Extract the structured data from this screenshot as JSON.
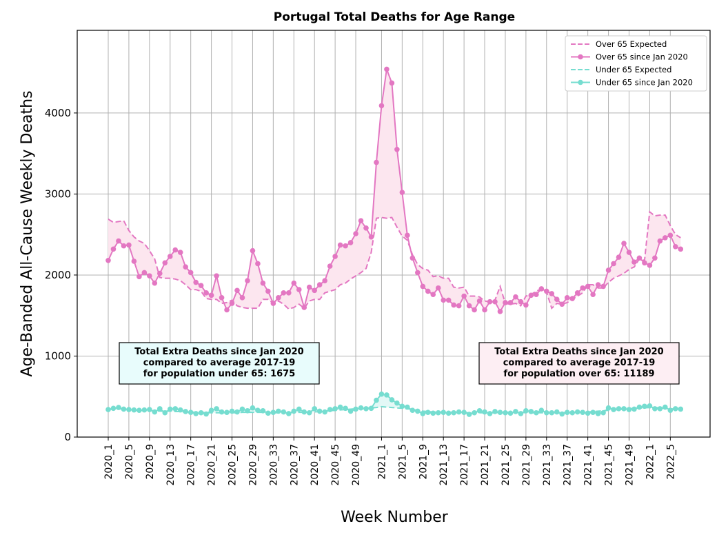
{
  "chart_data": {
    "type": "line",
    "title": "Portugal Total Deaths for Age Range",
    "xlabel": "Week Number",
    "ylabel": "Age-Banded All-Cause Weekly Deaths",
    "categories": [
      "2020_1",
      null,
      null,
      null,
      "2020_5",
      null,
      null,
      null,
      "2020_9",
      null,
      null,
      null,
      "2020_13",
      null,
      null,
      null,
      "2020_17",
      null,
      null,
      null,
      "2020_21",
      null,
      null,
      null,
      "2020_25",
      null,
      null,
      null,
      "2020_29",
      null,
      null,
      null,
      "2020_33",
      null,
      null,
      null,
      "2020_37",
      null,
      null,
      null,
      "2020_41",
      null,
      null,
      null,
      "2020_45",
      null,
      null,
      null,
      "2020_49",
      null,
      null,
      null,
      null,
      "2021_1",
      null,
      null,
      null,
      "2021_5",
      null,
      null,
      null,
      "2021_9",
      null,
      null,
      null,
      "2021_13",
      null,
      null,
      null,
      "2021_17",
      null,
      null,
      null,
      "2021_21",
      null,
      null,
      null,
      "2021_25",
      null,
      null,
      null,
      "2021_29",
      null,
      null,
      null,
      "2021_33",
      null,
      null,
      null,
      "2021_37",
      null,
      null,
      null,
      "2021_41",
      null,
      null,
      null,
      "2021_45",
      null,
      null,
      null,
      "2021_49",
      null,
      null,
      null,
      "2022_1",
      null,
      null,
      null,
      "2022_5",
      null,
      null
    ],
    "series": [
      {
        "name": "Over 65 Expected",
        "color": "#e377c2",
        "linestyle": "dashed",
        "marker": false,
        "values": [
          2690,
          2650,
          2660,
          2670,
          2550,
          2470,
          2420,
          2390,
          2300,
          2200,
          1970,
          1960,
          1960,
          1950,
          1930,
          1880,
          1820,
          1820,
          1800,
          1710,
          1700,
          1700,
          1650,
          1660,
          1690,
          1620,
          1600,
          1590,
          1590,
          1590,
          1700,
          1700,
          1650,
          1680,
          1640,
          1580,
          1600,
          1640,
          1590,
          1680,
          1700,
          1700,
          1780,
          1800,
          1820,
          1880,
          1900,
          1950,
          1990,
          2030,
          2080,
          2280,
          2700,
          2710,
          2700,
          2710,
          2590,
          2480,
          2430,
          2250,
          2130,
          2080,
          2060,
          1980,
          1990,
          1960,
          1960,
          1850,
          1840,
          1850,
          1740,
          1740,
          1730,
          1680,
          1670,
          1690,
          1860,
          1650,
          1640,
          1650,
          1620,
          1740,
          1760,
          1800,
          1830,
          1790,
          1590,
          1650,
          1640,
          1660,
          1700,
          1740,
          1780,
          1880,
          1880,
          1840,
          1840,
          1910,
          1960,
          1990,
          2020,
          2070,
          2100,
          2200,
          2180,
          2780,
          2730,
          2740,
          2740,
          2610,
          2500,
          2460
        ]
      },
      {
        "name": "Over 65 since Jan 2020",
        "color": "#e377c2",
        "linestyle": "solid",
        "marker": true,
        "values": [
          2180,
          2320,
          2420,
          2360,
          2370,
          2170,
          1980,
          2030,
          1990,
          1900,
          2020,
          2150,
          2230,
          2310,
          2280,
          2100,
          2030,
          1910,
          1870,
          1780,
          1750,
          1990,
          1720,
          1570,
          1650,
          1810,
          1720,
          1930,
          2300,
          2140,
          1900,
          1800,
          1650,
          1720,
          1780,
          1780,
          1900,
          1820,
          1600,
          1850,
          1810,
          1880,
          1930,
          2110,
          2230,
          2370,
          2360,
          2400,
          2510,
          2670,
          2580,
          2470,
          3390,
          4090,
          4540,
          4370,
          3550,
          3020,
          2490,
          2210,
          2030,
          1860,
          1800,
          1760,
          1840,
          1690,
          1690,
          1630,
          1620,
          1740,
          1620,
          1570,
          1680,
          1570,
          1670,
          1670,
          1550,
          1660,
          1660,
          1730,
          1670,
          1630,
          1750,
          1760,
          1830,
          1800,
          1770,
          1700,
          1640,
          1720,
          1710,
          1780,
          1840,
          1860,
          1760,
          1880,
          1860,
          2060,
          2140,
          2220,
          2390,
          2280,
          2160,
          2210,
          2150,
          2120,
          2210,
          2420,
          2460,
          2490,
          2350,
          2320
        ]
      },
      {
        "name": "Under 65 Expected",
        "color": "#76ddd0",
        "linestyle": "dashed",
        "marker": false,
        "values": [
          340,
          345,
          350,
          345,
          340,
          335,
          330,
          330,
          325,
          325,
          320,
          320,
          320,
          315,
          315,
          310,
          310,
          305,
          305,
          300,
          300,
          300,
          300,
          300,
          300,
          300,
          305,
          305,
          305,
          305,
          305,
          300,
          300,
          300,
          300,
          300,
          305,
          305,
          305,
          310,
          310,
          315,
          320,
          325,
          330,
          335,
          340,
          345,
          350,
          355,
          360,
          360,
          365,
          375,
          370,
          365,
          360,
          355,
          350,
          340,
          330,
          320,
          315,
          310,
          310,
          305,
          305,
          305,
          300,
          300,
          300,
          300,
          300,
          300,
          300,
          300,
          305,
          305,
          305,
          305,
          305,
          300,
          300,
          300,
          300,
          300,
          300,
          300,
          300,
          305,
          305,
          305,
          310,
          310,
          315,
          320,
          325,
          330,
          335,
          340,
          345,
          350,
          355,
          360,
          360,
          365,
          365,
          360,
          355,
          350,
          345,
          345
        ]
      },
      {
        "name": "Under 65 since Jan 2020",
        "color": "#76ddd0",
        "linestyle": "solid",
        "marker": true,
        "values": [
          340,
          355,
          365,
          345,
          340,
          335,
          330,
          335,
          340,
          310,
          350,
          300,
          345,
          350,
          335,
          315,
          305,
          290,
          300,
          285,
          330,
          350,
          310,
          305,
          320,
          310,
          345,
          325,
          360,
          330,
          325,
          295,
          305,
          320,
          310,
          290,
          320,
          345,
          310,
          300,
          350,
          320,
          310,
          340,
          350,
          370,
          355,
          320,
          345,
          360,
          350,
          355,
          455,
          530,
          520,
          460,
          420,
          380,
          370,
          330,
          320,
          290,
          305,
          295,
          300,
          305,
          295,
          300,
          310,
          305,
          280,
          300,
          325,
          310,
          290,
          315,
          305,
          300,
          295,
          315,
          290,
          325,
          315,
          300,
          330,
          300,
          300,
          310,
          285,
          305,
          300,
          310,
          305,
          295,
          305,
          290,
          300,
          360,
          340,
          350,
          350,
          340,
          345,
          370,
          380,
          385,
          350,
          350,
          370,
          330,
          350,
          345
        ]
      }
    ],
    "fill_between": [
      {
        "series": [
          1,
          0
        ],
        "color": "#fce6ef"
      },
      {
        "series": [
          3,
          2
        ],
        "color": "#e3f8f6"
      }
    ],
    "ylim": [
      0,
      5020
    ],
    "yticks": [
      0,
      1000,
      2000,
      3000,
      4000
    ],
    "grid": true,
    "legend": "upper right",
    "annotations": [
      {
        "lines": [
          "Total Extra Deaths since Jan 2020",
          "compared to average 2017-19",
          "for population under 65: 1675"
        ],
        "color": "#e8fcfc"
      },
      {
        "lines": [
          "Total Extra Deaths since Jan 2020",
          "compared to average 2017-19",
          "for population over 65: 11189"
        ],
        "color": "#fdeef3"
      }
    ]
  }
}
